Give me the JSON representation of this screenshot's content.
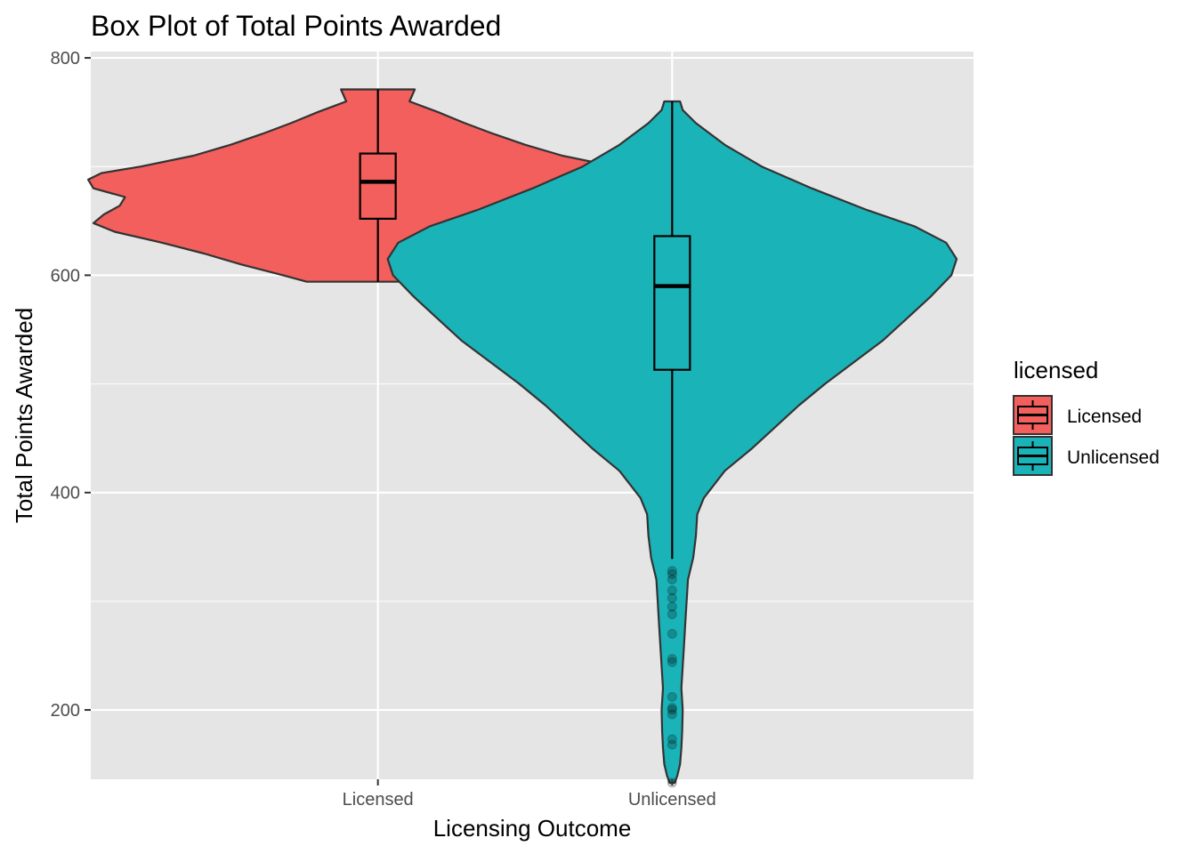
{
  "chart_data": {
    "type": "violin",
    "title": "Box Plot of Total Points Awarded",
    "xlabel": "Licensing Outcome",
    "ylabel": "Total Points Awarded",
    "ylim": [
      100,
      800
    ],
    "yticks": [
      200,
      400,
      600,
      800
    ],
    "grid": true,
    "legend": {
      "title": "licensed",
      "placement": "right",
      "entries": [
        "Licensed",
        "Unlicensed"
      ]
    },
    "categories": [
      "Licensed",
      "Unlicensed"
    ],
    "series": [
      {
        "name": "Licensed",
        "color": "#F25F5C",
        "box": {
          "min": 594,
          "q1": 652,
          "median": 686,
          "q3": 712,
          "max": 771
        },
        "outliers": [],
        "density": [
          [
            594,
            0.27
          ],
          [
            600,
            0.36
          ],
          [
            610,
            0.52
          ],
          [
            620,
            0.66
          ],
          [
            630,
            0.82
          ],
          [
            640,
            1.0
          ],
          [
            648,
            1.08
          ],
          [
            656,
            1.04
          ],
          [
            664,
            0.98
          ],
          [
            672,
            0.96
          ],
          [
            680,
            1.08
          ],
          [
            688,
            1.1
          ],
          [
            694,
            1.05
          ],
          [
            700,
            0.9
          ],
          [
            710,
            0.7
          ],
          [
            720,
            0.56
          ],
          [
            730,
            0.44
          ],
          [
            740,
            0.33
          ],
          [
            750,
            0.23
          ],
          [
            760,
            0.12
          ],
          [
            771,
            0.14
          ]
        ]
      },
      {
        "name": "Unlicensed",
        "color": "#1AB3B8",
        "box": {
          "min": 339,
          "q1": 513,
          "median": 590,
          "q3": 636,
          "max": 760
        },
        "outliers": [
          328,
          325,
          320,
          310,
          303,
          295,
          288,
          270,
          247,
          244,
          212,
          202,
          200,
          196,
          173,
          168,
          133
        ],
        "density": [
          [
            133,
            0.01
          ],
          [
            140,
            0.02
          ],
          [
            150,
            0.03
          ],
          [
            165,
            0.035
          ],
          [
            180,
            0.038
          ],
          [
            200,
            0.04
          ],
          [
            220,
            0.035
          ],
          [
            240,
            0.04
          ],
          [
            260,
            0.045
          ],
          [
            280,
            0.05
          ],
          [
            300,
            0.055
          ],
          [
            320,
            0.06
          ],
          [
            340,
            0.08
          ],
          [
            360,
            0.09
          ],
          [
            380,
            0.095
          ],
          [
            395,
            0.12
          ],
          [
            420,
            0.2
          ],
          [
            440,
            0.3
          ],
          [
            460,
            0.39
          ],
          [
            480,
            0.48
          ],
          [
            500,
            0.58
          ],
          [
            520,
            0.69
          ],
          [
            540,
            0.8
          ],
          [
            560,
            0.89
          ],
          [
            580,
            0.98
          ],
          [
            600,
            1.06
          ],
          [
            615,
            1.08
          ],
          [
            630,
            1.04
          ],
          [
            645,
            0.92
          ],
          [
            660,
            0.74
          ],
          [
            680,
            0.53
          ],
          [
            700,
            0.34
          ],
          [
            720,
            0.2
          ],
          [
            740,
            0.09
          ],
          [
            752,
            0.04
          ],
          [
            760,
            0.03
          ]
        ]
      }
    ]
  }
}
